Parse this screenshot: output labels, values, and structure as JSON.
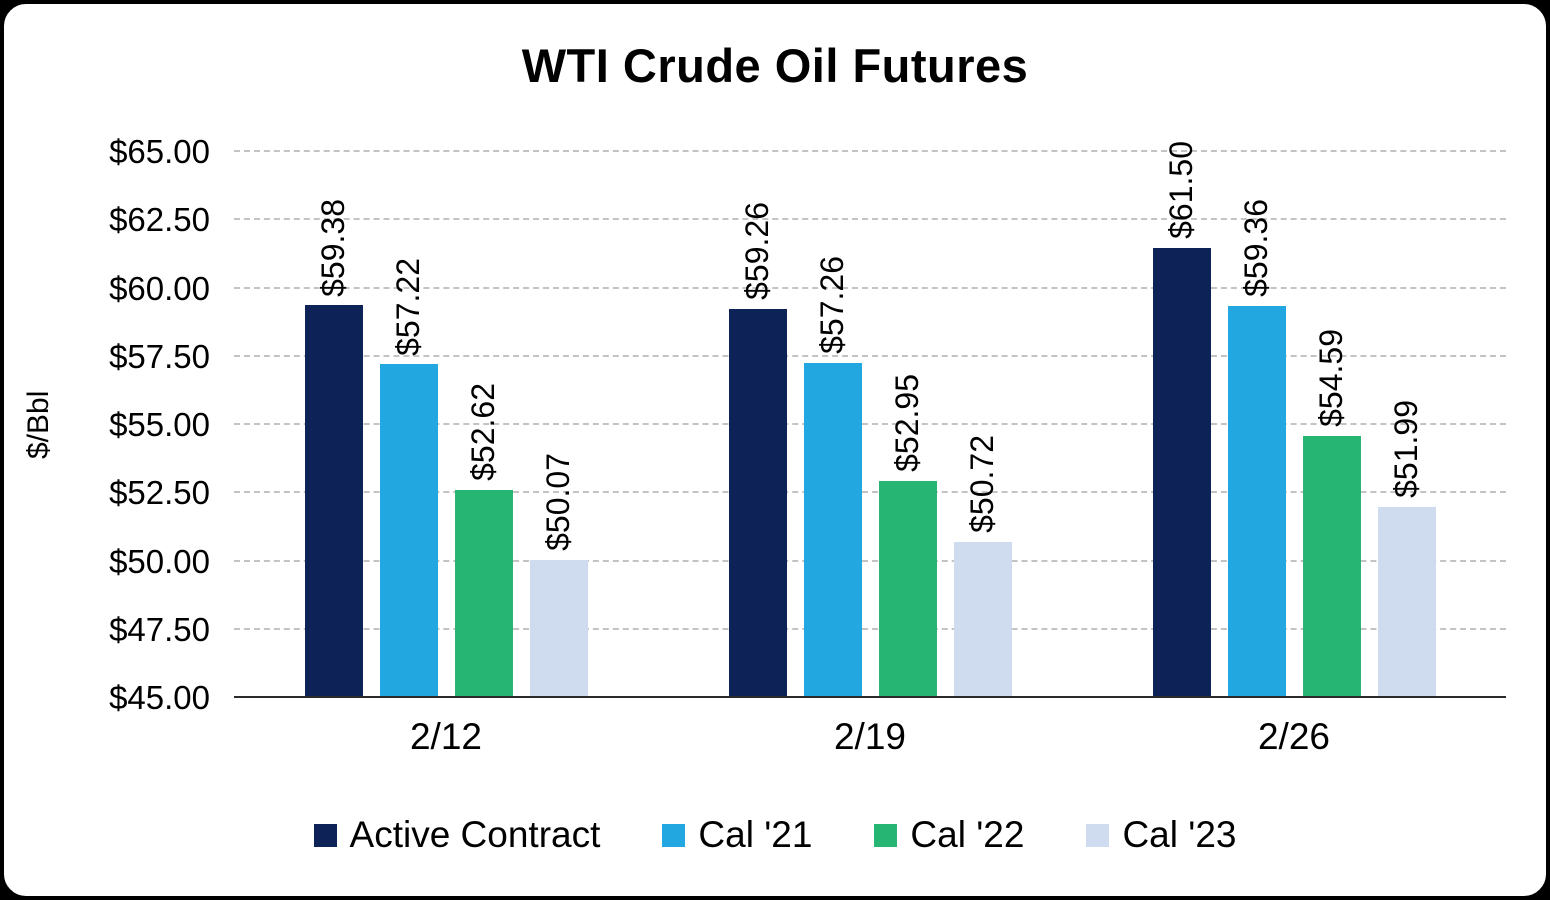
{
  "frame": {
    "background_color": "#ffffff",
    "border_color": "#000000"
  },
  "chart_data": {
    "type": "bar",
    "title": "WTI Crude Oil Futures",
    "xlabel": "",
    "ylabel": "$/Bbl",
    "categories": [
      "2/12",
      "2/19",
      "2/26"
    ],
    "series": [
      {
        "name": "Active Contract",
        "color": "#0d2357",
        "values": [
          59.38,
          59.26,
          61.5
        ]
      },
      {
        "name": "Cal '21",
        "color": "#22a7e0",
        "values": [
          57.22,
          57.26,
          59.36
        ]
      },
      {
        "name": "Cal '22",
        "color": "#26b573",
        "values": [
          52.62,
          52.95,
          54.59
        ]
      },
      {
        "name": "Cal '23",
        "color": "#cfdcf0",
        "values": [
          50.07,
          50.72,
          51.99
        ]
      }
    ],
    "data_labels": [
      [
        "$59.38",
        "$57.22",
        "$52.62",
        "$50.07"
      ],
      [
        "$59.26",
        "$57.26",
        "$52.95",
        "$50.72"
      ],
      [
        "$61.50",
        "$59.36",
        "$54.59",
        "$51.99"
      ]
    ],
    "ylim": [
      45,
      65
    ],
    "ytick_step": 2.5,
    "ytick_labels": [
      "$45.00",
      "$47.50",
      "$50.00",
      "$52.50",
      "$55.00",
      "$57.50",
      "$60.00",
      "$62.50",
      "$65.00"
    ],
    "grid": "horizontal-dashed",
    "gridline_color": "#c3c3c3",
    "axis_line_color": "#2b2b2b",
    "legend_position": "bottom",
    "data_label_rotation": -90
  }
}
